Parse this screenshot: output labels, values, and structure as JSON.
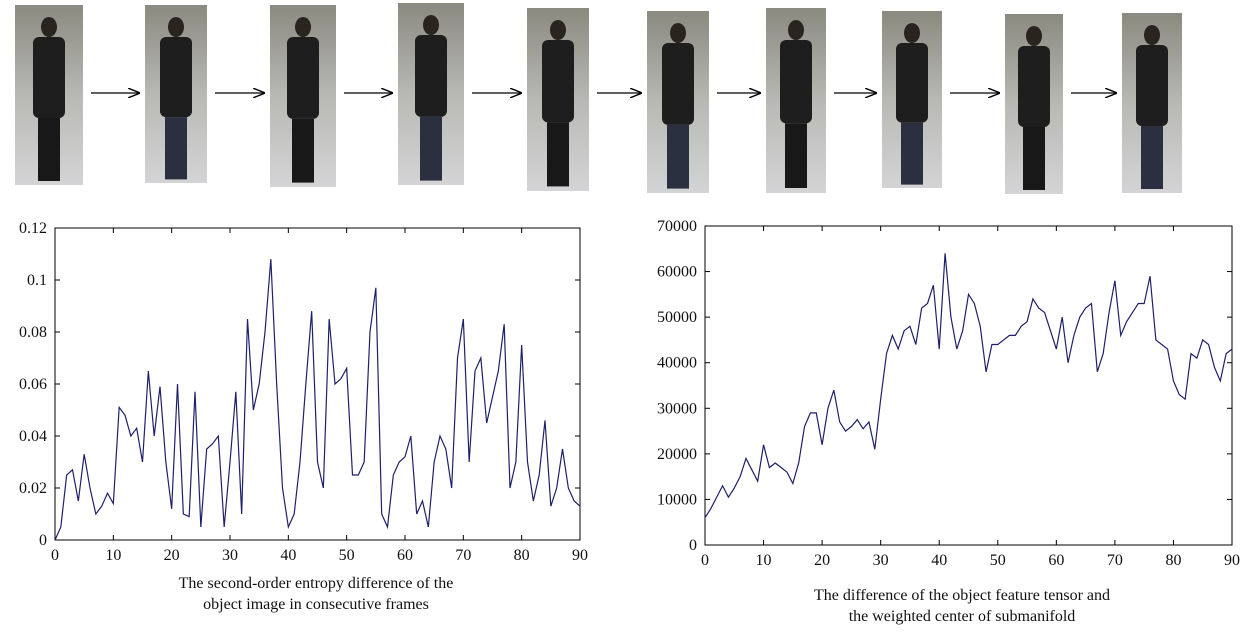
{
  "chart_data": [
    {
      "type": "line",
      "xlabel": [
        "The second-order entropy difference of the",
        "object image in consecutive frames"
      ],
      "x": [
        0,
        1,
        2,
        3,
        4,
        5,
        6,
        7,
        8,
        9,
        10,
        11,
        12,
        13,
        14,
        15,
        16,
        17,
        18,
        19,
        20,
        21,
        22,
        23,
        24,
        25,
        26,
        27,
        28,
        29,
        30,
        31,
        32,
        33,
        34,
        35,
        36,
        37,
        38,
        39,
        40,
        41,
        42,
        43,
        44,
        45,
        46,
        47,
        48,
        49,
        50,
        51,
        52,
        53,
        54,
        55,
        56,
        57,
        58,
        59,
        60,
        61,
        62,
        63,
        64,
        65,
        66,
        67,
        68,
        69,
        70,
        71,
        72,
        73,
        74,
        75,
        76,
        77,
        78,
        79,
        80,
        81,
        82,
        83,
        84,
        85,
        86,
        87,
        88,
        89,
        90
      ],
      "series": [
        {
          "color": "#1f1f6b",
          "values": [
            0,
            0.005,
            0.025,
            0.027,
            0.015,
            0.033,
            0.02,
            0.01,
            0.013,
            0.018,
            0.014,
            0.051,
            0.048,
            0.04,
            0.043,
            0.03,
            0.065,
            0.04,
            0.059,
            0.03,
            0.012,
            0.06,
            0.01,
            0.009,
            0.057,
            0.005,
            0.035,
            0.037,
            0.04,
            0.005,
            0.03,
            0.057,
            0.01,
            0.085,
            0.05,
            0.06,
            0.08,
            0.108,
            0.06,
            0.02,
            0.005,
            0.01,
            0.03,
            0.06,
            0.088,
            0.03,
            0.02,
            0.085,
            0.06,
            0.062,
            0.066,
            0.025,
            0.025,
            0.03,
            0.08,
            0.097,
            0.01,
            0.005,
            0.025,
            0.03,
            0.032,
            0.04,
            0.01,
            0.015,
            0.005,
            0.03,
            0.04,
            0.035,
            0.02,
            0.07,
            0.085,
            0.03,
            0.065,
            0.07,
            0.045,
            0.055,
            0.065,
            0.083,
            0.02,
            0.03,
            0.075,
            0.03,
            0.015,
            0.025,
            0.046,
            0.013,
            0.02,
            0.035,
            0.02,
            0.015,
            0.013
          ]
        }
      ],
      "xlim": [
        0,
        90
      ],
      "xticks": [
        0,
        10,
        20,
        30,
        40,
        50,
        60,
        70,
        80,
        90
      ],
      "ylim": [
        0,
        0.12
      ],
      "yticks": [
        0,
        0.02,
        0.04,
        0.06,
        0.08,
        0.1,
        0.12
      ]
    },
    {
      "type": "line",
      "xlabel": [
        "The difference of the object feature tensor and",
        "the weighted center of submanifold"
      ],
      "x": [
        0,
        1,
        2,
        3,
        4,
        5,
        6,
        7,
        8,
        9,
        10,
        11,
        12,
        13,
        14,
        15,
        16,
        17,
        18,
        19,
        20,
        21,
        22,
        23,
        24,
        25,
        26,
        27,
        28,
        29,
        30,
        31,
        32,
        33,
        34,
        35,
        36,
        37,
        38,
        39,
        40,
        41,
        42,
        43,
        44,
        45,
        46,
        47,
        48,
        49,
        50,
        51,
        52,
        53,
        54,
        55,
        56,
        57,
        58,
        59,
        60,
        61,
        62,
        63,
        64,
        65,
        66,
        67,
        68,
        69,
        70,
        71,
        72,
        73,
        74,
        75,
        76,
        77,
        78,
        79,
        80,
        81,
        82,
        83,
        84,
        85,
        86,
        87,
        88,
        89,
        90
      ],
      "series": [
        {
          "color": "#1f1f6b",
          "values": [
            6000,
            8000,
            10500,
            13000,
            10500,
            12500,
            15000,
            19000,
            16500,
            14000,
            22000,
            17000,
            18000,
            17000,
            16000,
            13500,
            18000,
            26000,
            29000,
            29000,
            22000,
            30000,
            34000,
            27000,
            25000,
            26000,
            27500,
            25500,
            27000,
            21000,
            32000,
            42000,
            46000,
            43000,
            47000,
            48000,
            44000,
            52000,
            53000,
            57000,
            43000,
            64000,
            50000,
            43000,
            47000,
            55000,
            53000,
            48000,
            38000,
            44000,
            44000,
            45000,
            46000,
            46000,
            48000,
            49000,
            54000,
            52000,
            51000,
            47000,
            43000,
            50000,
            40000,
            46000,
            50000,
            52000,
            53000,
            38000,
            42000,
            51000,
            58000,
            46000,
            49000,
            51000,
            53000,
            53000,
            59000,
            45000,
            44000,
            43000,
            36000,
            33000,
            32000,
            42000,
            41000,
            45000,
            44000,
            39000,
            36000,
            42000,
            43000
          ]
        }
      ],
      "xlim": [
        0,
        90
      ],
      "xticks": [
        0,
        10,
        20,
        30,
        40,
        50,
        60,
        70,
        80,
        90
      ],
      "ylim": [
        0,
        70000
      ],
      "yticks": [
        0,
        10000,
        20000,
        30000,
        40000,
        50000,
        60000,
        70000
      ]
    }
  ]
}
